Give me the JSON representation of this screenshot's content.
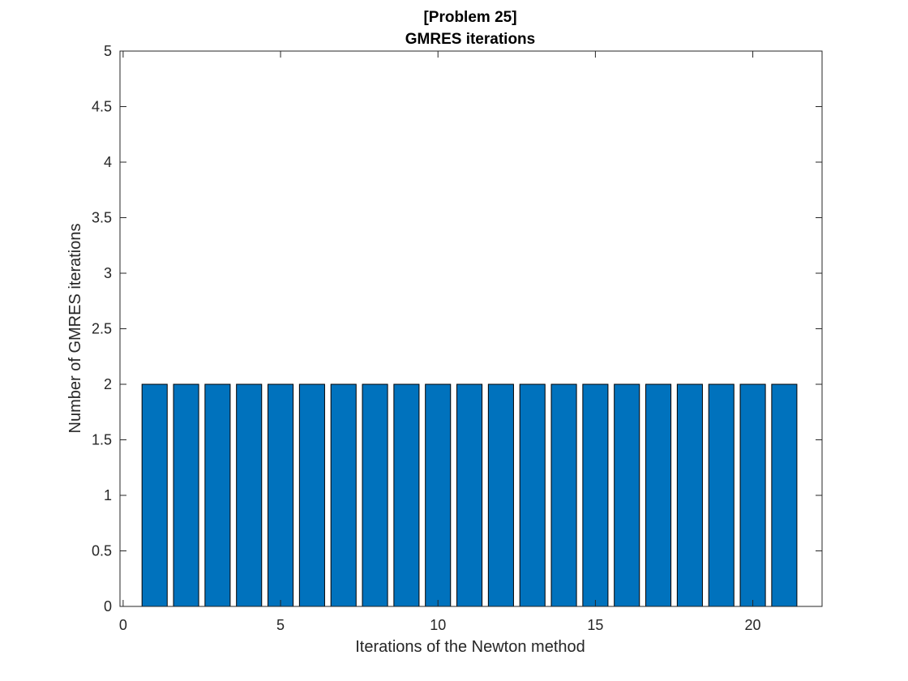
{
  "chart_data": {
    "type": "bar",
    "title_lines": [
      "[Problem 25]",
      "GMRES iterations"
    ],
    "xlabel": "Iterations of the Newton method",
    "ylabel": "Number of GMRES iterations",
    "x": [
      1,
      2,
      3,
      4,
      5,
      6,
      7,
      8,
      9,
      10,
      11,
      12,
      13,
      14,
      15,
      16,
      17,
      18,
      19,
      20,
      21
    ],
    "values": [
      2,
      2,
      2,
      2,
      2,
      2,
      2,
      2,
      2,
      2,
      2,
      2,
      2,
      2,
      2,
      2,
      2,
      2,
      2,
      2,
      2
    ],
    "xlim": [
      -0.1,
      22.2
    ],
    "ylim": [
      0,
      5
    ],
    "xticks": [
      0,
      5,
      10,
      15,
      20
    ],
    "xtick_labels": [
      "0",
      "5",
      "10",
      "15",
      "20"
    ],
    "yticks": [
      0,
      0.5,
      1,
      1.5,
      2,
      2.5,
      3,
      3.5,
      4,
      4.5,
      5
    ],
    "ytick_labels": [
      "0",
      "0.5",
      "1",
      "1.5",
      "2",
      "2.5",
      "3",
      "3.5",
      "4",
      "4.5",
      "5"
    ],
    "bar_width": 0.8,
    "grid": false,
    "legend": "none",
    "colors": {
      "bar_fill": "#0072BD",
      "bar_edge": "#000000",
      "axis": "#262626"
    }
  }
}
